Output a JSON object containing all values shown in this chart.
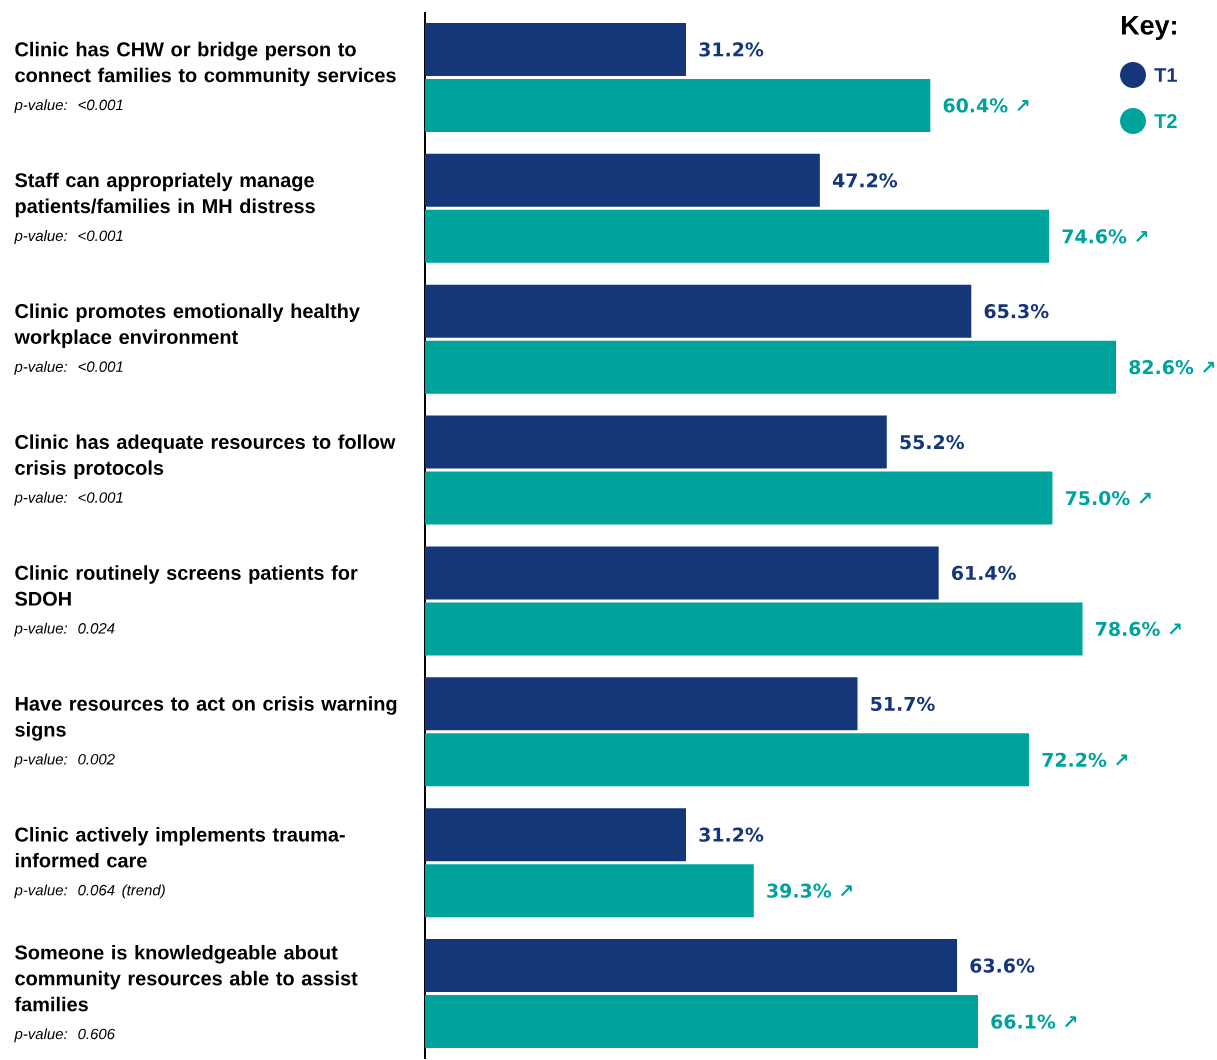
{
  "chart_data": {
    "type": "bar",
    "orientation": "horizontal",
    "legend_title": "Key:",
    "legend": "top right",
    "tick_labels": "y",
    "grid": false,
    "categories": [
      "Clinic has CHW or bridge person to connect families to community services",
      "Staff can appropriately manage patients/families in MH distress",
      "Clinic promotes emotionally healthy workplace environment",
      "Clinic has adequate resources to follow crisis protocols",
      "Clinic routinely screens patients for SDOH",
      "Have resources to act on crisis warning signs",
      "Clinic actively implements trauma-informed care",
      "Someone is knowledgeable about community resources able to assist families"
    ],
    "annotations": [
      "*p-value: <0.001*",
      "*p-value: <0.001*",
      "*p-value: <0.001*",
      "*p-value: <0.001*",
      "*p-value: 0.024*",
      "*p-value: 0.002*",
      "*p-value: 0.064 (trend)*",
      "*p-value: 0.606*"
    ],
    "series": [
      {
        "name": "T1",
        "color": "#15377a",
        "values": [
          31.2,
          47.2,
          65.3,
          55.2,
          61.4,
          51.7,
          31.2,
          63.6
        ],
        "value_labels": [
          "31.2%",
          "47.2%",
          "65.3%",
          "55.2%",
          "61.4%",
          "51.7%",
          "31.2%",
          "63.6%"
        ]
      },
      {
        "name": "T2",
        "color": "#00a39c",
        "values": [
          60.4,
          74.6,
          82.6,
          75.0,
          78.6,
          72.2,
          39.3,
          66.1
        ],
        "value_labels": [
          "60.4% ↗",
          "74.6% ↗",
          "82.6% ↗",
          "75.0% ↗",
          "78.6% ↗",
          "72.2% ↗",
          "39.3% ↗",
          "66.1% ↗"
        ]
      }
    ]
  }
}
